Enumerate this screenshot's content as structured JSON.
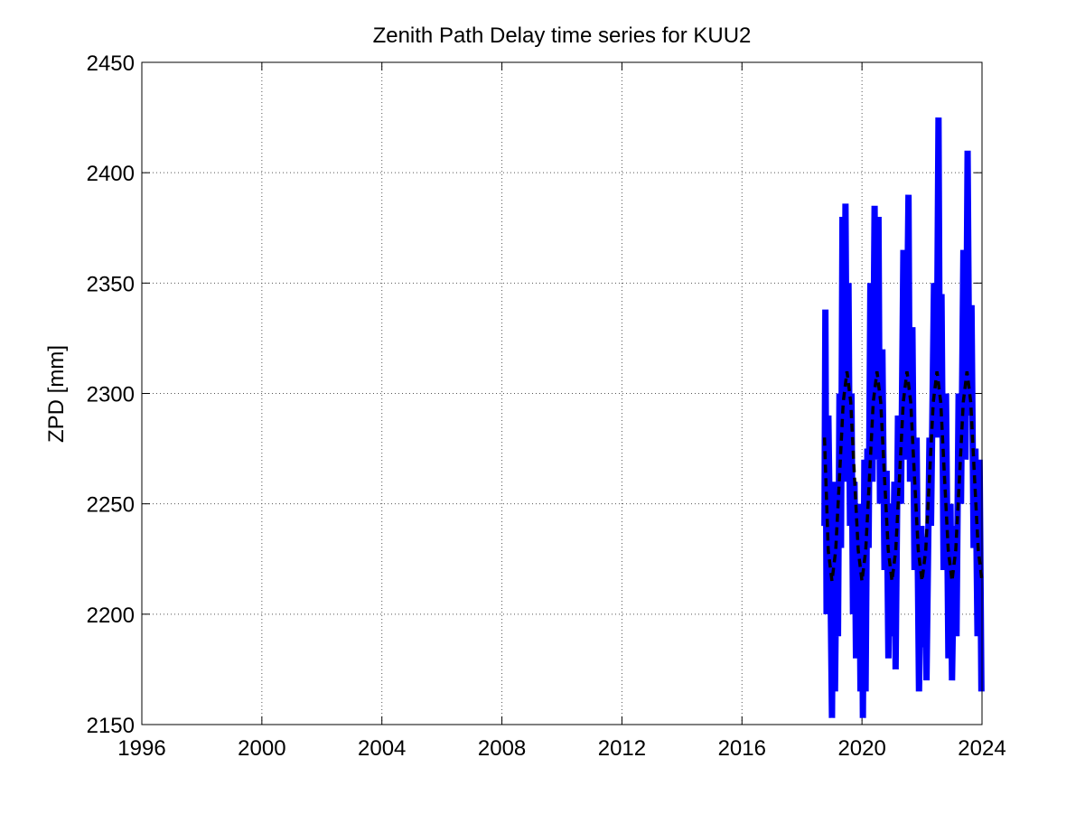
{
  "chart_data": {
    "type": "line",
    "title": "Zenith Path Delay time series for KUU2",
    "ylabel": "ZPD [mm]",
    "xlim": [
      1996,
      2024
    ],
    "xticks": [
      1996,
      2000,
      2004,
      2008,
      2012,
      2016,
      2020,
      2024
    ],
    "ylim": [
      2150,
      2450
    ],
    "yticks": [
      2150,
      2200,
      2250,
      2300,
      2350,
      2400,
      2450
    ],
    "grid": true,
    "series": [
      {
        "color": "#0000ff",
        "style": "solid",
        "x": [
          2018.75,
          2018.78,
          2018.82,
          2018.88,
          2018.95,
          2019.0,
          2019.05,
          2019.1,
          2019.15,
          2019.2,
          2019.25,
          2019.3,
          2019.35,
          2019.4,
          2019.45,
          2019.5,
          2019.55,
          2019.6,
          2019.65,
          2019.7,
          2019.75,
          2019.8,
          2019.9,
          2019.95,
          2020.0,
          2020.03,
          2020.08,
          2020.12,
          2020.18,
          2020.22,
          2020.28,
          2020.35,
          2020.42,
          2020.48,
          2020.55,
          2020.6,
          2020.68,
          2020.75,
          2020.82,
          2020.88,
          2020.95,
          2021.0,
          2021.08,
          2021.12,
          2021.2,
          2021.3,
          2021.38,
          2021.45,
          2021.55,
          2021.6,
          2021.68,
          2021.75,
          2021.82,
          2021.9,
          2021.98,
          2022.05,
          2022.1,
          2022.15,
          2022.25,
          2022.3,
          2022.4,
          2022.48,
          2022.55,
          2022.6,
          2022.65,
          2022.72,
          2022.8,
          2022.88,
          2022.95,
          2023.0,
          2023.08,
          2023.15,
          2023.22,
          2023.3,
          2023.38,
          2023.45,
          2023.52,
          2023.58,
          2023.65,
          2023.72,
          2023.78,
          2023.85,
          2023.92,
          2023.98
        ],
        "values": [
          2240,
          2338,
          2200,
          2290,
          2215,
          2153,
          2260,
          2165,
          2230,
          2190,
          2300,
          2230,
          2380,
          2260,
          2386,
          2270,
          2350,
          2240,
          2300,
          2200,
          2260,
          2180,
          2250,
          2165,
          2230,
          2153,
          2270,
          2165,
          2275,
          2230,
          2350,
          2260,
          2385,
          2270,
          2380,
          2250,
          2320,
          2220,
          2265,
          2180,
          2250,
          2190,
          2260,
          2175,
          2290,
          2250,
          2365,
          2270,
          2390,
          2260,
          2330,
          2220,
          2280,
          2165,
          2240,
          2185,
          2235,
          2170,
          2280,
          2240,
          2350,
          2280,
          2425,
          2280,
          2345,
          2220,
          2300,
          2180,
          2250,
          2170,
          2240,
          2190,
          2300,
          2250,
          2365,
          2270,
          2410,
          2290,
          2340,
          2230,
          2275,
          2190,
          2270,
          2165
        ]
      },
      {
        "color": "#000000",
        "style": "dashed",
        "x": [
          2018.75,
          2018.875,
          2019.0,
          2019.125,
          2019.25,
          2019.375,
          2019.5,
          2019.625,
          2019.75,
          2019.875,
          2020.0,
          2020.125,
          2020.25,
          2020.375,
          2020.5,
          2020.625,
          2020.75,
          2020.875,
          2021.0,
          2021.125,
          2021.25,
          2021.375,
          2021.5,
          2021.625,
          2021.75,
          2021.875,
          2022.0,
          2022.125,
          2022.25,
          2022.375,
          2022.5,
          2022.625,
          2022.75,
          2022.875,
          2023.0,
          2023.125,
          2023.25,
          2023.375,
          2023.5,
          2023.625,
          2023.75,
          2023.875,
          2024.0
        ],
        "values": [
          2280,
          2229,
          2215,
          2229,
          2262,
          2296,
          2310,
          2296,
          2262,
          2229,
          2215,
          2229,
          2262,
          2296,
          2310,
          2296,
          2262,
          2229,
          2215,
          2229,
          2262,
          2296,
          2310,
          2296,
          2262,
          2229,
          2215,
          2229,
          2262,
          2296,
          2310,
          2296,
          2262,
          2229,
          2215,
          2229,
          2262,
          2296,
          2310,
          2296,
          2262,
          2229,
          2215
        ]
      }
    ]
  }
}
